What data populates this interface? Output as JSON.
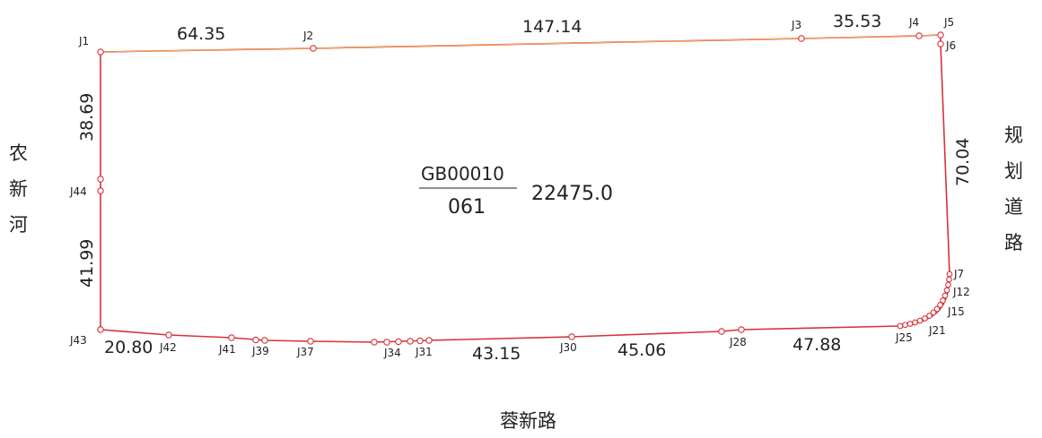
{
  "parcel": {
    "code": "GB00010",
    "number": "061",
    "area": "22475.0",
    "outline_color": "#d8323a"
  },
  "roads": {
    "west": "农新河",
    "east": "规划道路",
    "south": "蓉新路"
  },
  "dimensions": {
    "d1": "64.35",
    "d2": "147.14",
    "d3": "35.53",
    "d4": "70.04",
    "d5": "38.69",
    "d6": "41.99",
    "d7": "20.80",
    "d8": "43.15",
    "d9": "45.06",
    "d10": "47.88"
  },
  "points": {
    "J1": "J1",
    "J2": "J2",
    "J3": "J3",
    "J4": "J4",
    "J5": "J5",
    "J6": "J6",
    "J7": "J7",
    "J12": "J12",
    "J15": "J15",
    "J21": "J21",
    "J25": "J25",
    "J28": "J28",
    "J30": "J30",
    "J31": "J31",
    "J34": "J34",
    "J37": "J37",
    "J39": "J39",
    "J41": "J41",
    "J42": "J42",
    "J43": "J43",
    "J44": "J44"
  }
}
